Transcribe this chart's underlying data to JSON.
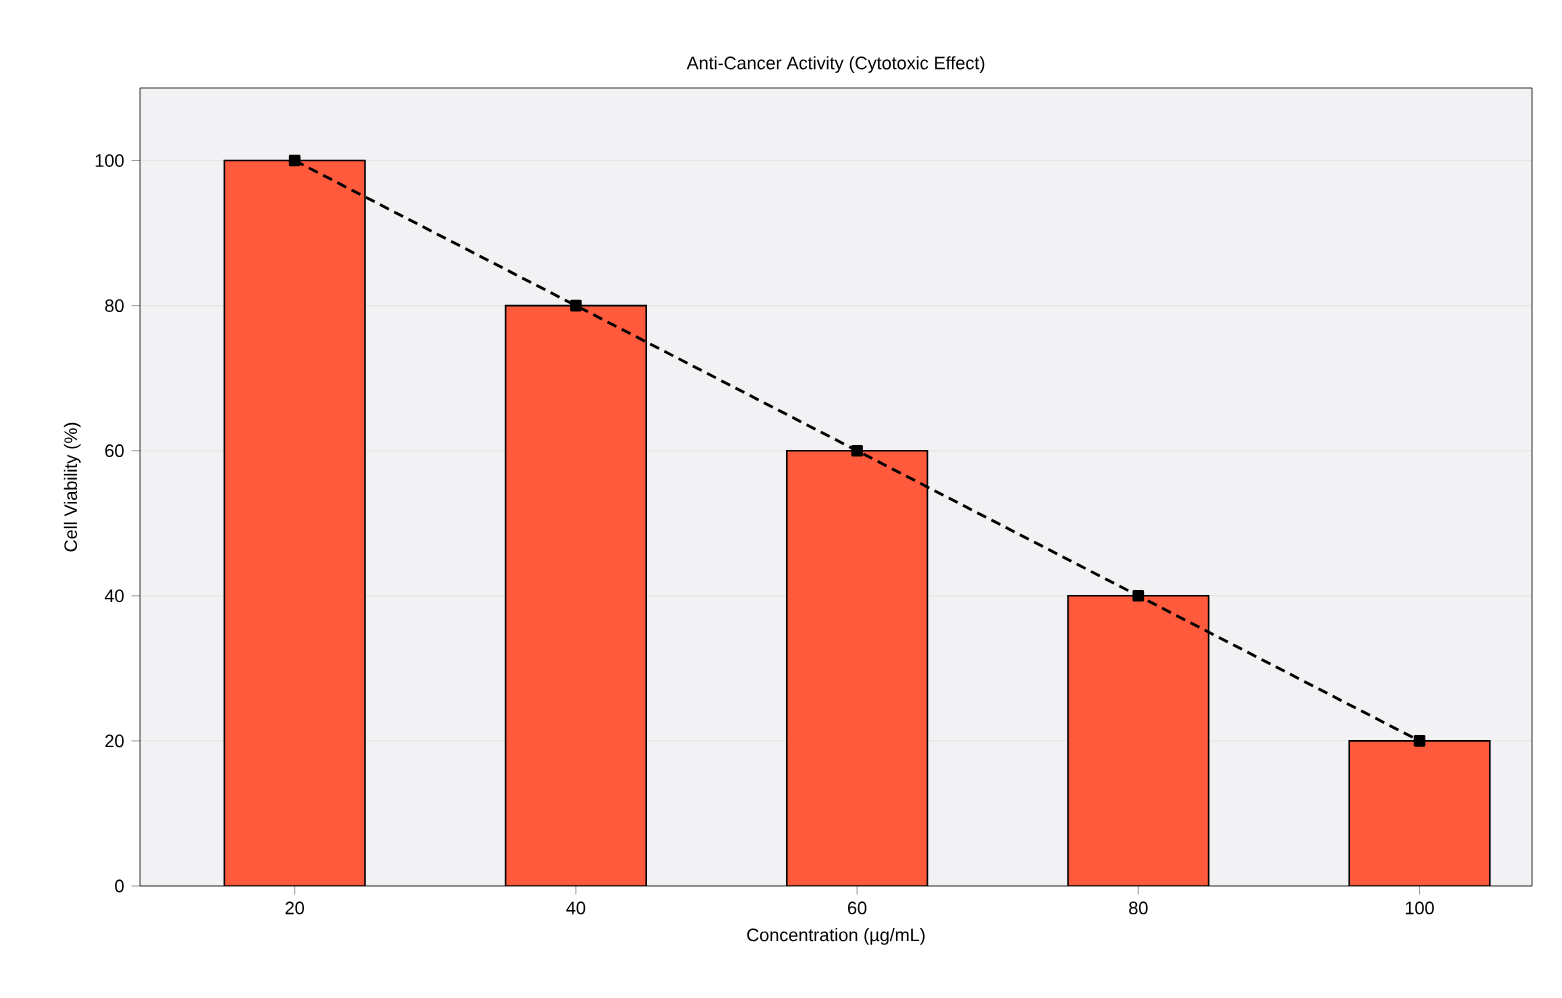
{
  "chart_data": {
    "type": "bar",
    "title": "Anti-Cancer Activity (Cytotoxic Effect)",
    "xlabel": "Concentration (µg/mL)",
    "ylabel": "Cell Viability (%)",
    "categories": [
      "20",
      "40",
      "60",
      "80",
      "100"
    ],
    "series": [
      {
        "color": "#ff5a3c",
        "values": [
          100,
          80,
          60,
          40,
          20
        ]
      },
      {
        "type": "line",
        "color": "#000000",
        "values": [
          100,
          80,
          60,
          40,
          20
        ]
      }
    ],
    "ylim": [
      0,
      110
    ],
    "yticks": [
      0,
      20,
      40,
      60,
      80,
      100
    ],
    "grid": "y",
    "marker": "square",
    "line_style": "dashed"
  }
}
